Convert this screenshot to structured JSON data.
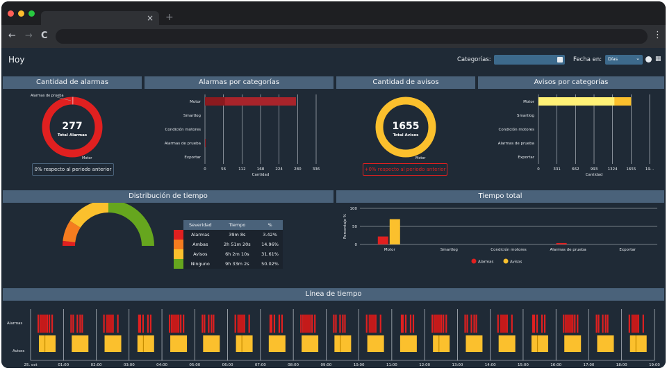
{
  "browser": {
    "tab_close": "×",
    "new_tab": "+",
    "back": "←",
    "forward": "→",
    "reload": "C",
    "menu": "⋮",
    "dots": [
      "#ff5f57",
      "#febc2e",
      "#28c840"
    ]
  },
  "header": {
    "title": "Hoy",
    "categories_label": "Categorías:",
    "date_label": "Fecha en:",
    "date_unit": "Días",
    "calendar_icon": "calendar-icon",
    "clock_icon": "clock-icon"
  },
  "colors": {
    "alarm": "#e02020",
    "alarm_dark": "#8b1a1f",
    "warning": "#fbc02d",
    "warning_light": "#fff176",
    "header_blue": "#4a627a",
    "bg": "#1f2a36",
    "green": "#66a61e"
  },
  "alarms_count": {
    "title": "Cantidad de alarmas",
    "value": "277",
    "subtitle": "Total Alarmas",
    "legend_top": "Alarmas de prueba",
    "legend_bottom": "Motor",
    "comparison": "0% respecto al periodo anterior"
  },
  "alarms_by_category": {
    "title": "Alarmas por categorías",
    "xlabel": "Cantidad"
  },
  "warnings_count": {
    "title": "Cantidad de avisos",
    "value": "1655",
    "subtitle": "Total Avisos",
    "legend_bottom": "Motor",
    "comparison": "+0% respecto al periodo anterior"
  },
  "warnings_by_category": {
    "title": "Avisos por categorías",
    "xlabel": "Cantidad"
  },
  "time_distribution": {
    "title": "Distribución de tiempo",
    "columns": [
      "Severidad",
      "Tiempo",
      "%"
    ],
    "rows": [
      {
        "severity": "Alarmas",
        "time": "39m 8s",
        "pct": "3.42%",
        "color": "#e02020"
      },
      {
        "severity": "Ambas",
        "time": "2h 51m 20s",
        "pct": "14.96%",
        "color": "#f57c1f"
      },
      {
        "severity": "Avisos",
        "time": "6h 2m 10s",
        "pct": "31.61%",
        "color": "#fbc02d"
      },
      {
        "severity": "Ninguno",
        "time": "9h 33m 2s",
        "pct": "50.02%",
        "color": "#66a61e"
      }
    ]
  },
  "total_time": {
    "title": "Tiempo total",
    "ylabel": "Porcentaje %",
    "legend": [
      "Alarmas",
      "Avisos"
    ]
  },
  "timeline": {
    "title": "Línea de tiempo",
    "rows": [
      "Alarmas",
      "Avisos"
    ],
    "ticks": [
      "25. oct",
      "01:00",
      "02:00",
      "03:00",
      "04:00",
      "05:00",
      "06:00",
      "07:00",
      "08:00",
      "09:00",
      "10:00",
      "11:00",
      "12:00",
      "13:00",
      "14:00",
      "15:00",
      "16:00",
      "17:00",
      "18:00",
      "19:00"
    ]
  },
  "chart_data": [
    {
      "type": "pie",
      "title": "Cantidad de alarmas",
      "categories": [
        "Motor",
        "Alarmas de prueba"
      ],
      "values": [
        275,
        2
      ],
      "center_label": "277"
    },
    {
      "type": "bar",
      "orientation": "horizontal",
      "title": "Alarmas por categorías",
      "xlabel": "Cantidad",
      "categories": [
        "Motor",
        "Smartlog",
        "Condición motores",
        "Alarmas de prueba",
        "Exportar"
      ],
      "values": [
        275,
        0,
        0,
        2,
        0
      ],
      "xticks": [
        "0",
        "56",
        "112",
        "168",
        "224",
        "280",
        "336"
      ],
      "xlim": [
        0,
        336
      ]
    },
    {
      "type": "pie",
      "title": "Cantidad de avisos",
      "categories": [
        "Motor"
      ],
      "values": [
        1655
      ],
      "center_label": "1655"
    },
    {
      "type": "bar",
      "orientation": "horizontal",
      "title": "Avisos por categorías",
      "xlabel": "Cantidad",
      "categories": [
        "Motor",
        "Smartlog",
        "Condición motores",
        "Alarmas de prueba",
        "Exportar"
      ],
      "values": [
        1655,
        0,
        0,
        0,
        0
      ],
      "xticks": [
        "0",
        "331",
        "662",
        "993",
        "1324",
        "1655",
        "19..."
      ],
      "xlim": [
        0,
        1986
      ]
    },
    {
      "type": "pie",
      "title": "Distribución de tiempo",
      "categories": [
        "Alarmas",
        "Ambas",
        "Avisos",
        "Ninguno"
      ],
      "values": [
        3.42,
        14.96,
        31.61,
        50.02
      ]
    },
    {
      "type": "bar",
      "title": "Tiempo total",
      "ylabel": "Porcentaje %",
      "categories": [
        "Motor",
        "Smartlog",
        "Condición motores",
        "Alarmas de prueba",
        "Exportar"
      ],
      "series": [
        {
          "name": "Alarmas",
          "values": [
            22,
            0,
            0,
            4,
            0
          ]
        },
        {
          "name": "Avisos",
          "values": [
            70,
            0,
            0,
            0,
            0
          ]
        }
      ],
      "yticks": [
        "0",
        "50",
        "100"
      ],
      "ylim": [
        0,
        100
      ]
    }
  ]
}
